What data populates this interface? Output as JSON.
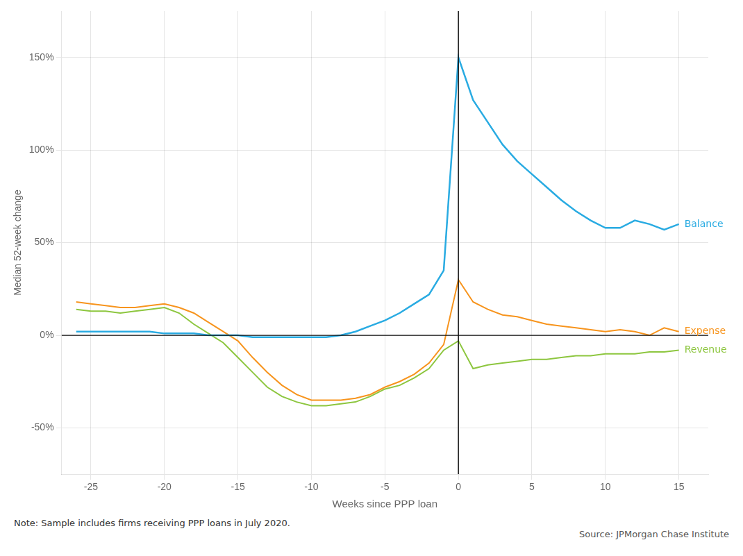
{
  "chart_data": {
    "type": "line",
    "x": [
      -26,
      -25,
      -24,
      -23,
      -22,
      -21,
      -20,
      -19,
      -18,
      -17,
      -16,
      -15,
      -14,
      -13,
      -12,
      -11,
      -10,
      -9,
      -8,
      -7,
      -6,
      -5,
      -4,
      -3,
      -2,
      -1,
      0,
      1,
      2,
      3,
      4,
      5,
      6,
      7,
      8,
      9,
      10,
      11,
      12,
      13,
      14,
      15
    ],
    "series": [
      {
        "name": "Balance",
        "color": "#29ABE2",
        "values": [
          2,
          2,
          2,
          2,
          2,
          2,
          1,
          1,
          1,
          0,
          0,
          0,
          -1,
          -1,
          -1,
          -1,
          -1,
          -1,
          0,
          2,
          5,
          8,
          12,
          17,
          22,
          35,
          150,
          127,
          115,
          103,
          94,
          87,
          80,
          73,
          67,
          62,
          58,
          58,
          62,
          60,
          57,
          60
        ]
      },
      {
        "name": "Expense",
        "color": "#F7941D",
        "values": [
          18,
          17,
          16,
          15,
          15,
          16,
          17,
          15,
          12,
          7,
          2,
          -3,
          -12,
          -20,
          -27,
          -32,
          -35,
          -35,
          -35,
          -34,
          -32,
          -28,
          -25,
          -21,
          -15,
          -5,
          30,
          18,
          14,
          11,
          10,
          8,
          6,
          5,
          4,
          3,
          2,
          3,
          2,
          0,
          4,
          2
        ]
      },
      {
        "name": "Revenue",
        "color": "#8DC63F",
        "values": [
          14,
          13,
          13,
          12,
          13,
          14,
          15,
          12,
          6,
          1,
          -4,
          -12,
          -20,
          -28,
          -33,
          -36,
          -38,
          -38,
          -37,
          -36,
          -33,
          -29,
          -27,
          -23,
          -18,
          -8,
          -3,
          -18,
          -16,
          -15,
          -14,
          -13,
          -13,
          -12,
          -11,
          -11,
          -10,
          -10,
          -10,
          -9,
          -9,
          -8
        ]
      }
    ],
    "x_label": "Weeks since PPP loan",
    "y_label": "Median 52-week change",
    "xlim": [
      -27,
      17
    ],
    "xticks": [
      -25,
      -20,
      -15,
      -10,
      -5,
      0,
      5,
      10,
      15
    ],
    "ylim": [
      -75,
      175
    ],
    "yticks": [
      {
        "value": -50,
        "label": "-50%"
      },
      {
        "value": 0,
        "label": "0%"
      },
      {
        "value": 50,
        "label": "50%"
      },
      {
        "value": 100,
        "label": "100%"
      },
      {
        "value": 150,
        "label": "150%"
      }
    ],
    "vline": {
      "value": 0,
      "color": "#111111"
    },
    "hline": {
      "value": 0,
      "color": "#111111"
    },
    "grid": true,
    "note": "Note: Sample includes firms receiving PPP loans in July 2020.",
    "source": "Source: JPMorgan Chase Institute"
  }
}
